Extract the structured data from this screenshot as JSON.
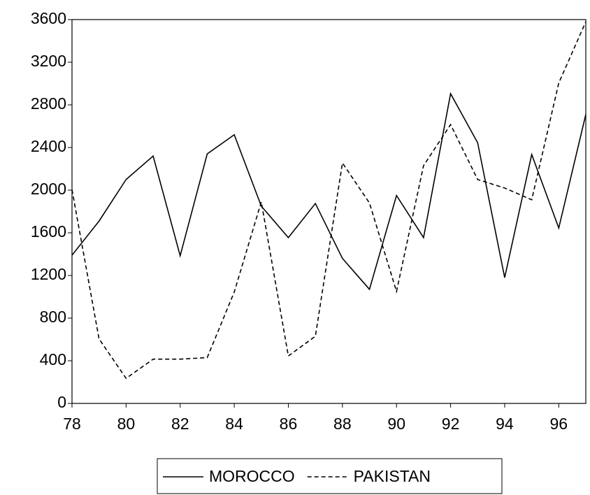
{
  "chart_data": {
    "type": "line",
    "x": [
      78,
      79,
      80,
      81,
      82,
      83,
      84,
      85,
      86,
      87,
      88,
      89,
      90,
      91,
      92,
      93,
      94,
      95,
      96,
      97
    ],
    "series": [
      {
        "name": "MOROCCO",
        "color": "#000000",
        "line_style": "solid",
        "values": [
          1390,
          1710,
          2100,
          2320,
          1385,
          2340,
          2520,
          1850,
          1555,
          1875,
          1360,
          1070,
          1950,
          1555,
          2905,
          2445,
          1180,
          2335,
          1645,
          2710
        ]
      },
      {
        "name": "PAKISTAN",
        "color": "#000000",
        "line_style": "dashed",
        "values": [
          2005,
          605,
          235,
          415,
          415,
          430,
          1045,
          1890,
          445,
          630,
          2255,
          1880,
          1050,
          2230,
          2615,
          2100,
          2020,
          1910,
          3005,
          3580
        ]
      }
    ],
    "xlim": [
      78,
      97
    ],
    "xticks": [
      78,
      80,
      82,
      84,
      86,
      88,
      90,
      92,
      94,
      96
    ],
    "ylim": [
      0,
      3600
    ],
    "yticks": [
      0,
      400,
      800,
      1200,
      1600,
      2000,
      2400,
      2800,
      3200,
      3600
    ],
    "grid": false,
    "legend": "bottom"
  }
}
